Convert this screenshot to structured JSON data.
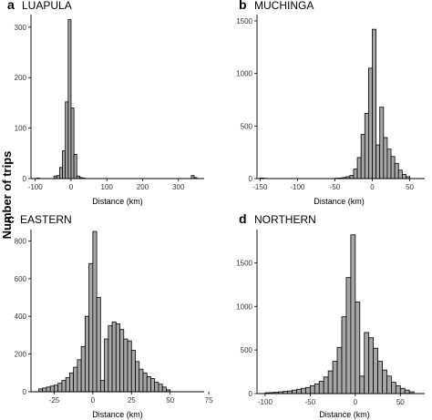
{
  "figure": {
    "ylabel": "Number of trips"
  },
  "chart_data": [
    {
      "type": "bar",
      "letter": "a",
      "title": "LUAPULA",
      "xlabel": "Distance (km)",
      "ylabel": "Number of trips",
      "xlim": [
        -112,
        372
      ],
      "ylim": [
        0,
        325
      ],
      "xticks": [
        -100,
        0,
        100,
        200,
        300
      ],
      "yticks": [
        0,
        100,
        200,
        300
      ],
      "bin_width": 8,
      "x": [
        -92,
        -84,
        -76,
        -68,
        -60,
        -52,
        -44,
        -36,
        -28,
        -20,
        -12,
        -4,
        4,
        12,
        20,
        28,
        36,
        44,
        52,
        60,
        68,
        76,
        84,
        92,
        100,
        108,
        116,
        124,
        132,
        140,
        148,
        156,
        164,
        172,
        180,
        188,
        196,
        204,
        212,
        220,
        228,
        236,
        244,
        252,
        260,
        268,
        276,
        284,
        292,
        300,
        308,
        316,
        324,
        332,
        340,
        348,
        356
      ],
      "values": [
        1,
        0,
        0,
        0,
        0,
        0,
        5,
        6,
        22,
        55,
        152,
        315,
        140,
        48,
        5,
        2,
        1,
        0,
        0,
        0,
        0,
        0,
        0,
        0,
        0,
        0,
        0,
        0,
        0,
        0,
        0,
        0,
        0,
        0,
        0,
        0,
        0,
        0,
        0,
        0,
        0,
        0,
        0,
        0,
        0,
        0,
        0,
        0,
        0,
        0,
        0,
        0,
        0,
        0,
        6,
        2,
        0
      ]
    },
    {
      "type": "bar",
      "letter": "b",
      "title": "MUCHINGA",
      "xlabel": "Distance (km)",
      "ylabel": "Number of trips",
      "xlim": [
        -154,
        70
      ],
      "ylim": [
        0,
        1560
      ],
      "xticks": [
        -150,
        -100,
        -50,
        0,
        50
      ],
      "yticks": [
        0,
        500,
        1000,
        1500
      ],
      "bin_width": 5,
      "x": [
        -147.5,
        -142.5,
        -137.5,
        -132.5,
        -127.5,
        -122.5,
        -117.5,
        -112.5,
        -107.5,
        -102.5,
        -97.5,
        -92.5,
        -87.5,
        -82.5,
        -77.5,
        -72.5,
        -67.5,
        -62.5,
        -57.5,
        -52.5,
        -47.5,
        -42.5,
        -37.5,
        -32.5,
        -27.5,
        -22.5,
        -17.5,
        -12.5,
        -7.5,
        -2.5,
        2.5,
        7.5,
        12.5,
        17.5,
        22.5,
        27.5,
        32.5,
        37.5,
        42.5,
        47.5,
        52.5
      ],
      "values": [
        5,
        2,
        0,
        0,
        0,
        0,
        0,
        0,
        0,
        0,
        0,
        0,
        0,
        0,
        0,
        0,
        0,
        0,
        0,
        0,
        3,
        5,
        10,
        18,
        30,
        90,
        200,
        420,
        620,
        1050,
        1420,
        320,
        680,
        390,
        280,
        210,
        145,
        80,
        40,
        18,
        0
      ]
    },
    {
      "type": "bar",
      "letter": "c",
      "title": "EASTERN",
      "xlabel": "Distance (km)",
      "ylabel": "Number of trips",
      "xlim": [
        -40,
        72
      ],
      "ylim": [
        0,
        860
      ],
      "xticks": [
        -25,
        0,
        25,
        50,
        75
      ],
      "yticks": [
        0,
        200,
        400,
        600,
        800
      ],
      "bin_width": 2.5,
      "x": [
        -33.75,
        -31.25,
        -28.75,
        -26.25,
        -23.75,
        -21.25,
        -18.75,
        -16.25,
        -13.75,
        -11.25,
        -8.75,
        -6.25,
        -3.75,
        -1.25,
        1.25,
        3.75,
        6.25,
        8.75,
        11.25,
        13.75,
        16.25,
        18.75,
        21.25,
        23.75,
        26.25,
        28.75,
        31.25,
        33.75,
        36.25,
        38.75,
        41.25,
        43.75,
        46.25,
        48.75,
        51.25,
        53.75,
        56.25,
        58.75,
        61.25,
        63.75
      ],
      "values": [
        15,
        20,
        25,
        30,
        35,
        45,
        60,
        75,
        100,
        130,
        170,
        240,
        400,
        680,
        850,
        500,
        60,
        280,
        350,
        370,
        360,
        330,
        280,
        270,
        220,
        160,
        120,
        100,
        80,
        70,
        50,
        40,
        25,
        10,
        0,
        0,
        0,
        0,
        0,
        0
      ]
    },
    {
      "type": "bar",
      "letter": "d",
      "title": "NORTHERN",
      "xlabel": "Distance (km)",
      "ylabel": "Number of trips",
      "xlim": [
        -109,
        77
      ],
      "ylim": [
        0,
        1880
      ],
      "xticks": [
        -100,
        -50,
        0,
        50
      ],
      "yticks": [
        0,
        500,
        1000,
        1500
      ],
      "bin_width": 5,
      "x": [
        -97.5,
        -92.5,
        -87.5,
        -82.5,
        -77.5,
        -72.5,
        -67.5,
        -62.5,
        -57.5,
        -52.5,
        -47.5,
        -42.5,
        -37.5,
        -32.5,
        -27.5,
        -22.5,
        -17.5,
        -12.5,
        -7.5,
        -2.5,
        2.5,
        7.5,
        12.5,
        17.5,
        22.5,
        27.5,
        32.5,
        37.5,
        42.5,
        47.5,
        52.5,
        57.5,
        62.5
      ],
      "values": [
        10,
        12,
        15,
        20,
        25,
        30,
        40,
        50,
        60,
        70,
        90,
        110,
        140,
        190,
        260,
        370,
        530,
        880,
        1330,
        1820,
        1050,
        200,
        700,
        640,
        520,
        370,
        270,
        200,
        130,
        90,
        60,
        40,
        20
      ]
    }
  ]
}
